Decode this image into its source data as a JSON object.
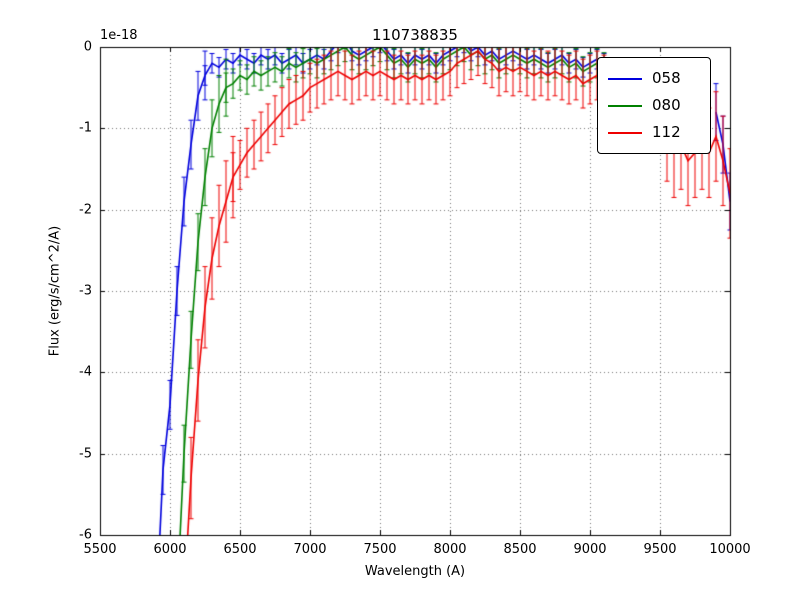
{
  "figure": {
    "background": "#ffffff"
  },
  "chart_data": {
    "type": "line",
    "title": "110738835",
    "xlabel": "Wavelength (A)",
    "ylabel": "Flux (erg/s/cm^2/A)",
    "y_offset_label": "1e-18",
    "xlim": [
      5500,
      10000
    ],
    "ylim": [
      -6,
      0
    ],
    "xticks": [
      5500,
      6000,
      6500,
      7000,
      7500,
      8000,
      8500,
      9000,
      9500,
      10000
    ],
    "yticks": [
      0,
      -1,
      -2,
      -3,
      -4,
      -5,
      -6
    ],
    "grid": true,
    "grid_style": "dotted",
    "legend_position": "upper right",
    "series": [
      {
        "name": "058",
        "color": "#0000dd",
        "segments": [
          {
            "x0": 5900,
            "step": 50,
            "err": 0.3,
            "y": [
              -7.0,
              -5.2,
              -4.4,
              -3.0,
              -1.9,
              -1.2,
              -0.6,
              -0.35
            ]
          },
          {
            "x0": 6250,
            "step": 50,
            "err": 0.12,
            "y": [
              -0.35,
              -0.2,
              -0.25,
              -0.15,
              -0.2,
              -0.1,
              -0.15,
              -0.2,
              -0.1,
              -0.15,
              -0.1,
              -0.2,
              -0.15,
              -0.1,
              -0.2,
              -0.15,
              -0.1,
              -0.15,
              -0.05,
              0.05,
              0.1,
              -0.05,
              -0.1,
              -0.05,
              0.0,
              0.05,
              -0.05,
              -0.15,
              -0.1,
              -0.2,
              -0.1,
              -0.15,
              -0.1,
              -0.2,
              -0.1,
              -0.05,
              0.0,
              0.05,
              -0.05,
              0.0,
              -0.1,
              -0.05,
              -0.15,
              -0.1,
              -0.05,
              -0.1,
              -0.15,
              -0.1,
              -0.15,
              -0.2,
              -0.15,
              -0.1,
              -0.2,
              -0.15,
              -0.25,
              -0.2,
              -0.15,
              -0.2
            ]
          },
          {
            "x0": 9900,
            "step": 50,
            "err": 0.35,
            "y": [
              -0.8,
              -1.2,
              -1.9
            ]
          }
        ]
      },
      {
        "name": "080",
        "color": "#008000",
        "segments": [
          {
            "x0": 6050,
            "step": 50,
            "err": 0.35,
            "y": [
              -6.8,
              -5.0,
              -3.6,
              -2.4,
              -1.6,
              -1.0,
              -0.7,
              -0.5
            ]
          },
          {
            "x0": 6400,
            "step": 50,
            "err": 0.18,
            "y": [
              -0.5,
              -0.45,
              -0.35,
              -0.4,
              -0.3,
              -0.35,
              -0.3,
              -0.25,
              -0.3,
              -0.2,
              -0.25,
              -0.2,
              -0.15,
              -0.2,
              -0.15,
              -0.1,
              -0.05,
              0.0,
              -0.1,
              -0.15,
              -0.1,
              -0.05,
              0.0,
              -0.1,
              -0.2,
              -0.15,
              -0.25,
              -0.15,
              -0.2,
              -0.15,
              -0.25,
              -0.15,
              -0.1,
              -0.05,
              0.0,
              -0.1,
              -0.05,
              -0.15,
              -0.1,
              -0.2,
              -0.15,
              -0.1,
              -0.15,
              -0.2,
              -0.15,
              -0.2,
              -0.25,
              -0.2,
              -0.15,
              -0.25,
              -0.2,
              -0.3,
              -0.25,
              -0.2,
              -0.25
            ]
          }
        ]
      },
      {
        "name": "112",
        "color": "#ee0000",
        "segments": [
          {
            "x0": 6100,
            "step": 50,
            "err": 0.5,
            "y": [
              -6.8,
              -5.3,
              -4.1,
              -3.2,
              -2.6,
              -2.2,
              -1.9,
              -1.6
            ]
          },
          {
            "x0": 6450,
            "step": 50,
            "err": 0.3,
            "y": [
              -1.6,
              -1.45,
              -1.3,
              -1.2,
              -1.1,
              -1.0,
              -0.9,
              -0.8,
              -0.7,
              -0.65,
              -0.6,
              -0.5,
              -0.45,
              -0.4,
              -0.35,
              -0.3,
              -0.35,
              -0.4,
              -0.35,
              -0.3,
              -0.35,
              -0.3,
              -0.35,
              -0.4,
              -0.35,
              -0.4,
              -0.35,
              -0.4,
              -0.35,
              -0.4,
              -0.35,
              -0.3,
              -0.2,
              -0.15,
              -0.1,
              -0.05,
              -0.15,
              -0.2,
              -0.3,
              -0.25,
              -0.3,
              -0.25,
              -0.3,
              -0.35,
              -0.3,
              -0.35,
              -0.3,
              -0.35,
              -0.4,
              -0.35,
              -0.45,
              -0.4,
              -0.35,
              -0.4
            ]
          },
          {
            "x0": 9550,
            "step": 50,
            "err": 0.55,
            "y": [
              -1.1,
              -1.3,
              -1.2,
              -1.4,
              -1.3,
              -1.2,
              -1.3,
              -1.1,
              -1.4,
              -1.8
            ]
          }
        ]
      }
    ]
  }
}
